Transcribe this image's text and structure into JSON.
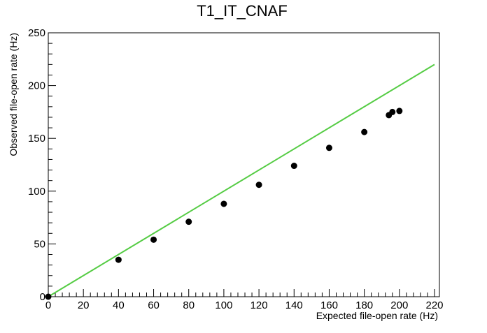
{
  "chart_data": {
    "type": "scatter",
    "title": "T1_IT_CNAF",
    "xlabel": "Expected file-open rate (Hz)",
    "ylabel": "Observed file-open rate (Hz)",
    "xlim": [
      0,
      220
    ],
    "ylim": [
      0,
      250
    ],
    "x_ticks": [
      0,
      20,
      40,
      60,
      80,
      100,
      120,
      140,
      160,
      180,
      200,
      220
    ],
    "y_ticks": [
      0,
      50,
      100,
      150,
      200,
      250
    ],
    "grid": false,
    "legend": "none",
    "series": [
      {
        "type": "scatter",
        "color": "#000000",
        "x": [
          0,
          40,
          60,
          80,
          100,
          120,
          140,
          160,
          180,
          194,
          196,
          200
        ],
        "y": [
          0,
          35,
          54,
          71,
          88,
          106,
          124,
          141,
          156,
          172,
          175,
          176
        ]
      },
      {
        "type": "line",
        "color": "#55cc44",
        "x": [
          0,
          220
        ],
        "y": [
          0,
          220
        ]
      }
    ]
  }
}
